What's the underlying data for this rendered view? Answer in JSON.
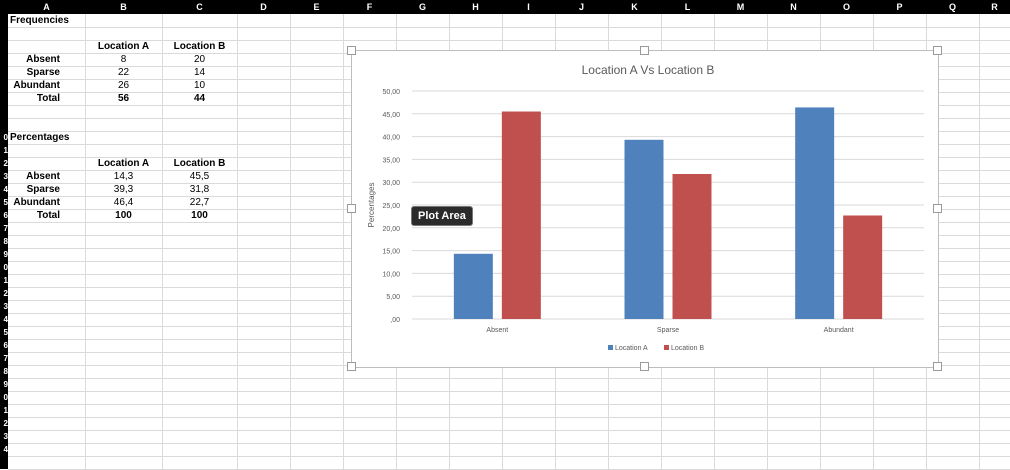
{
  "columns": [
    "A",
    "B",
    "C",
    "D",
    "E",
    "F",
    "G",
    "H",
    "I",
    "J",
    "K",
    "L",
    "M",
    "N",
    "O",
    "P",
    "Q",
    "R"
  ],
  "row_labels": [
    "",
    "",
    "",
    "",
    "",
    "",
    "",
    "",
    "",
    "0",
    "1",
    "2",
    "3",
    "4",
    "5",
    "6",
    "7",
    "8",
    "9",
    "0",
    "1",
    "2",
    "3",
    "4",
    "5",
    "6",
    "7",
    "8",
    "9",
    "0",
    "1",
    "2",
    "3",
    "4"
  ],
  "frequencies": {
    "title": "Frequencies",
    "headers": [
      "Location A",
      "Location B"
    ],
    "rows": [
      {
        "label": "Absent",
        "a": "8",
        "b": "20"
      },
      {
        "label": "Sparse",
        "a": "22",
        "b": "14"
      },
      {
        "label": "Abundant",
        "a": "26",
        "b": "10"
      },
      {
        "label": "Total",
        "a": "56",
        "b": "44"
      }
    ]
  },
  "percentages": {
    "title": "Percentages",
    "headers": [
      "Location A",
      "Location B"
    ],
    "rows": [
      {
        "label": "Absent",
        "a": "14,3",
        "b": "45,5"
      },
      {
        "label": "Sparse",
        "a": "39,3",
        "b": "31,8"
      },
      {
        "label": "Abundant",
        "a": "46,4",
        "b": "22,7"
      },
      {
        "label": "Total",
        "a": "100",
        "b": "100"
      }
    ]
  },
  "tooltip": "Plot Area",
  "colors": {
    "series_a": "#4f81bd",
    "series_b": "#c0504d"
  },
  "chart_data": {
    "type": "bar",
    "title": "Location A Vs Location B",
    "ylabel": "Percentages",
    "xlabel": "",
    "categories": [
      "Absent",
      "Sparse",
      "Abundant"
    ],
    "series": [
      {
        "name": "Location A",
        "values": [
          14.3,
          39.3,
          46.4
        ]
      },
      {
        "name": "Location B",
        "values": [
          45.5,
          31.8,
          22.7
        ]
      }
    ],
    "ylim": [
      0,
      50
    ],
    "yticks": [
      "50,00",
      "45,00",
      "40,00",
      "35,00",
      "30,00",
      "25,00",
      "20,00",
      "15,00",
      "10,00",
      "5,00",
      ",00"
    ],
    "grid": true,
    "legend": "bottom"
  }
}
